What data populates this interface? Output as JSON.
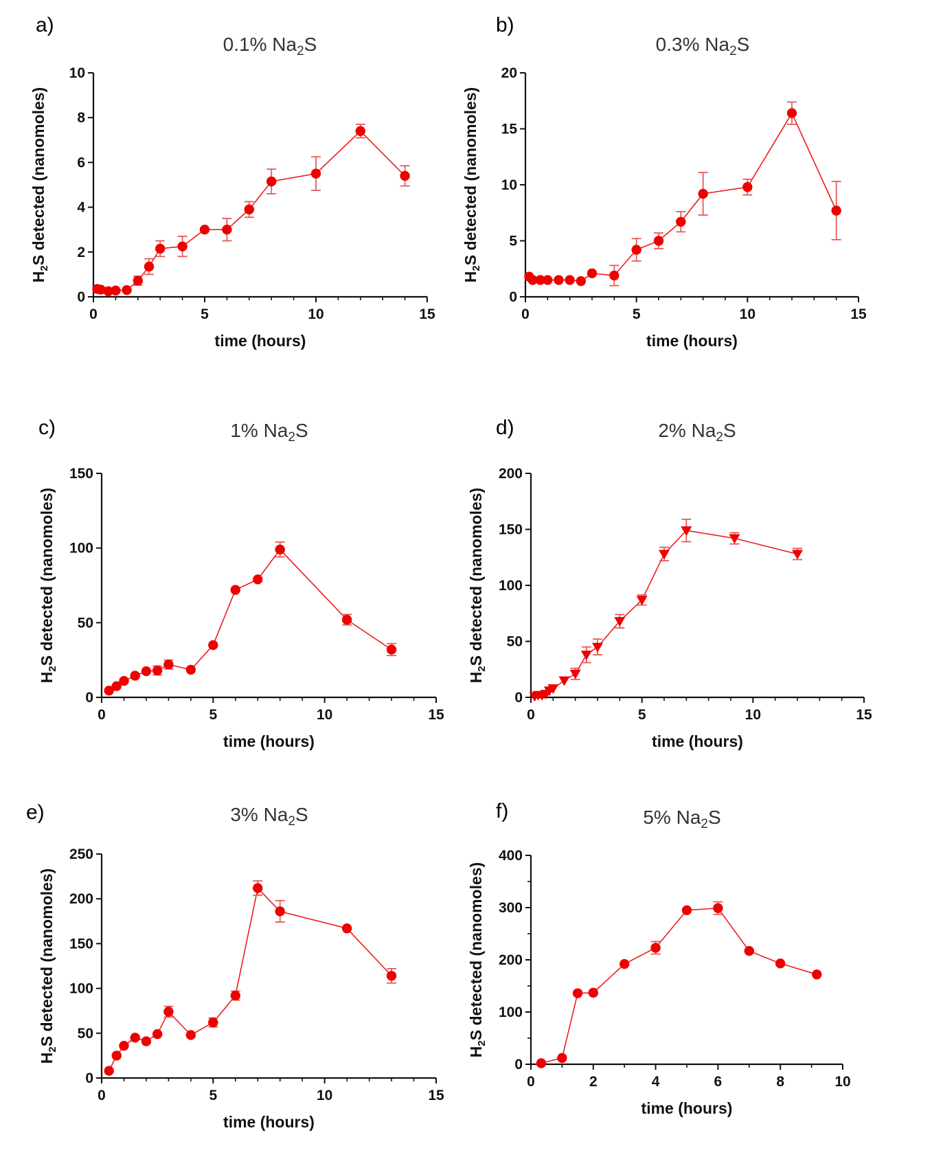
{
  "figure": {
    "panels": [
      {
        "letter": "a)",
        "title_pre": "0.1% Na",
        "title_sub": "2",
        "title_post": "S"
      },
      {
        "letter": "b)",
        "title_pre": "0.3% Na",
        "title_sub": "2",
        "title_post": "S"
      },
      {
        "letter": "c)",
        "title_pre": "1% Na",
        "title_sub": "2",
        "title_post": "S"
      },
      {
        "letter": "d)",
        "title_pre": "2% Na",
        "title_sub": "2",
        "title_post": "S"
      },
      {
        "letter": "e)",
        "title_pre": "3% Na",
        "title_sub": "2",
        "title_post": "S"
      },
      {
        "letter": "f)",
        "title_pre": "5% Na",
        "title_sub": "2",
        "title_post": "S"
      }
    ],
    "xlabel": "time (hours)",
    "ylabel_pre": "H",
    "ylabel_sub": "2",
    "ylabel_post": "S detected (nanomoles)",
    "series_color": "#ee0000",
    "error_color": "#e65a5a"
  },
  "chart_data": [
    {
      "type": "line",
      "title": "0.1% Na2S",
      "xlabel": "time (hours)",
      "ylabel": "H2S detected (nanomoles)",
      "xlim": [
        0,
        15
      ],
      "ylim": [
        0,
        10
      ],
      "xticks": [
        0,
        5,
        10,
        15
      ],
      "yticks": [
        0,
        2,
        4,
        6,
        8,
        10
      ],
      "marker": "circle",
      "x": [
        0.17,
        0.33,
        0.67,
        1.0,
        1.5,
        2.0,
        2.5,
        3.0,
        4.0,
        5.0,
        6.0,
        7.0,
        8.0,
        10.0,
        12.0,
        14.0
      ],
      "y": [
        0.35,
        0.32,
        0.25,
        0.28,
        0.3,
        0.72,
        1.35,
        2.15,
        2.25,
        3.0,
        3.0,
        3.9,
        5.15,
        5.5,
        7.4,
        5.4
      ],
      "err": [
        0.1,
        0.05,
        0.05,
        0.05,
        0.05,
        0.2,
        0.35,
        0.35,
        0.45,
        0.1,
        0.5,
        0.35,
        0.55,
        0.75,
        0.3,
        0.45
      ]
    },
    {
      "type": "line",
      "title": "0.3% Na2S",
      "xlabel": "time (hours)",
      "ylabel": "H2S detected (nanomoles)",
      "xlim": [
        0,
        15
      ],
      "ylim": [
        0,
        20
      ],
      "xticks": [
        0,
        5,
        10,
        15
      ],
      "yticks": [
        0,
        5,
        10,
        15,
        20
      ],
      "marker": "circle",
      "x": [
        0.17,
        0.33,
        0.67,
        1.0,
        1.5,
        2.0,
        2.5,
        3.0,
        4.0,
        5.0,
        6.0,
        7.0,
        8.0,
        10.0,
        12.0,
        14.0
      ],
      "y": [
        1.8,
        1.5,
        1.5,
        1.5,
        1.5,
        1.5,
        1.4,
        2.1,
        1.9,
        4.2,
        5.0,
        6.7,
        9.2,
        9.8,
        16.4,
        7.7
      ],
      "err": [
        0.2,
        0.2,
        0.1,
        0.1,
        0.1,
        0.1,
        0.1,
        0.2,
        0.9,
        1.0,
        0.7,
        0.9,
        1.9,
        0.7,
        1.0,
        2.6
      ]
    },
    {
      "type": "line",
      "title": "1% Na2S",
      "xlabel": "time (hours)",
      "ylabel": "H2S detected (nanomoles)",
      "xlim": [
        0,
        15
      ],
      "ylim": [
        0,
        150
      ],
      "xticks": [
        0,
        5,
        10,
        15
      ],
      "yticks": [
        0,
        50,
        100,
        150
      ],
      "marker": "circle",
      "x": [
        0.33,
        0.67,
        1.0,
        1.5,
        2.0,
        2.5,
        3.0,
        4.0,
        5.0,
        6.0,
        7.0,
        8.0,
        11.0,
        13.0
      ],
      "y": [
        4.5,
        7.5,
        11.0,
        14.5,
        17.5,
        18.0,
        22.0,
        18.5,
        35.0,
        72.0,
        79.0,
        99.0,
        52.0,
        32.0
      ],
      "err": [
        1.0,
        1.0,
        1.0,
        1.0,
        1.5,
        3.0,
        3.0,
        1.0,
        1.0,
        1.0,
        1.0,
        5.0,
        3.5,
        4.0
      ]
    },
    {
      "type": "line",
      "title": "2% Na2S",
      "xlabel": "time (hours)",
      "ylabel": "H2S detected (nanomoles)",
      "xlim": [
        0,
        15
      ],
      "ylim": [
        0,
        200
      ],
      "xticks": [
        0,
        5,
        10,
        15
      ],
      "yticks": [
        0,
        50,
        100,
        150,
        200
      ],
      "marker": "triangle-down",
      "x": [
        0.17,
        0.33,
        0.5,
        0.67,
        0.83,
        1.0,
        1.5,
        2.0,
        2.5,
        3.0,
        4.0,
        5.0,
        6.0,
        7.0,
        9.17,
        12.0
      ],
      "y": [
        1.0,
        2.0,
        2.0,
        3.0,
        6.0,
        8.0,
        15.0,
        21.0,
        38.0,
        45.0,
        68.0,
        87.0,
        128.0,
        149.0,
        142.0,
        128.0
      ],
      "err": [
        1.0,
        1.0,
        1.0,
        1.0,
        1.0,
        1.5,
        3.0,
        5.0,
        7.0,
        7.0,
        6.0,
        4.5,
        6.0,
        10.0,
        5.0,
        5.0
      ]
    },
    {
      "type": "line",
      "title": "3% Na2S",
      "xlabel": "time (hours)",
      "ylabel": "H2S detected (nanomoles)",
      "xlim": [
        0,
        15
      ],
      "ylim": [
        0,
        250
      ],
      "xticks": [
        0,
        5,
        10,
        15
      ],
      "yticks": [
        0,
        50,
        100,
        150,
        200,
        250
      ],
      "marker": "circle",
      "x": [
        0.33,
        0.67,
        1.0,
        1.5,
        2.0,
        2.5,
        3.0,
        4.0,
        5.0,
        6.0,
        7.0,
        8.0,
        11.0,
        13.0
      ],
      "y": [
        8.0,
        25.0,
        36.0,
        45.0,
        41.0,
        49.0,
        74.0,
        48.0,
        62.0,
        92.0,
        212.0,
        186.0,
        167.0,
        114.0
      ],
      "err": [
        2.0,
        2.0,
        2.0,
        2.0,
        2.0,
        2.0,
        6.0,
        2.0,
        5.0,
        5.0,
        8.0,
        12.0,
        2.0,
        8.0
      ]
    },
    {
      "type": "line",
      "title": "5% Na2S",
      "xlabel": "time (hours)",
      "ylabel": "H2S detected (nanomoles)",
      "xlim": [
        0,
        10
      ],
      "ylim": [
        0,
        400
      ],
      "xticks": [
        0,
        2,
        4,
        6,
        8,
        10
      ],
      "yticks": [
        0,
        100,
        200,
        300,
        400
      ],
      "marker": "circle",
      "x": [
        0.33,
        1.0,
        1.5,
        2.0,
        3.0,
        4.0,
        5.0,
        6.0,
        7.0,
        8.0,
        9.17
      ],
      "y": [
        2.0,
        12.0,
        136.0,
        137.0,
        192.0,
        223.0,
        295.0,
        299.0,
        217.0,
        193.0,
        172.0
      ],
      "err": [
        2.0,
        2.0,
        4.0,
        6.0,
        3.0,
        12.0,
        6.0,
        12.0,
        4.0,
        3.0,
        3.0
      ]
    }
  ]
}
